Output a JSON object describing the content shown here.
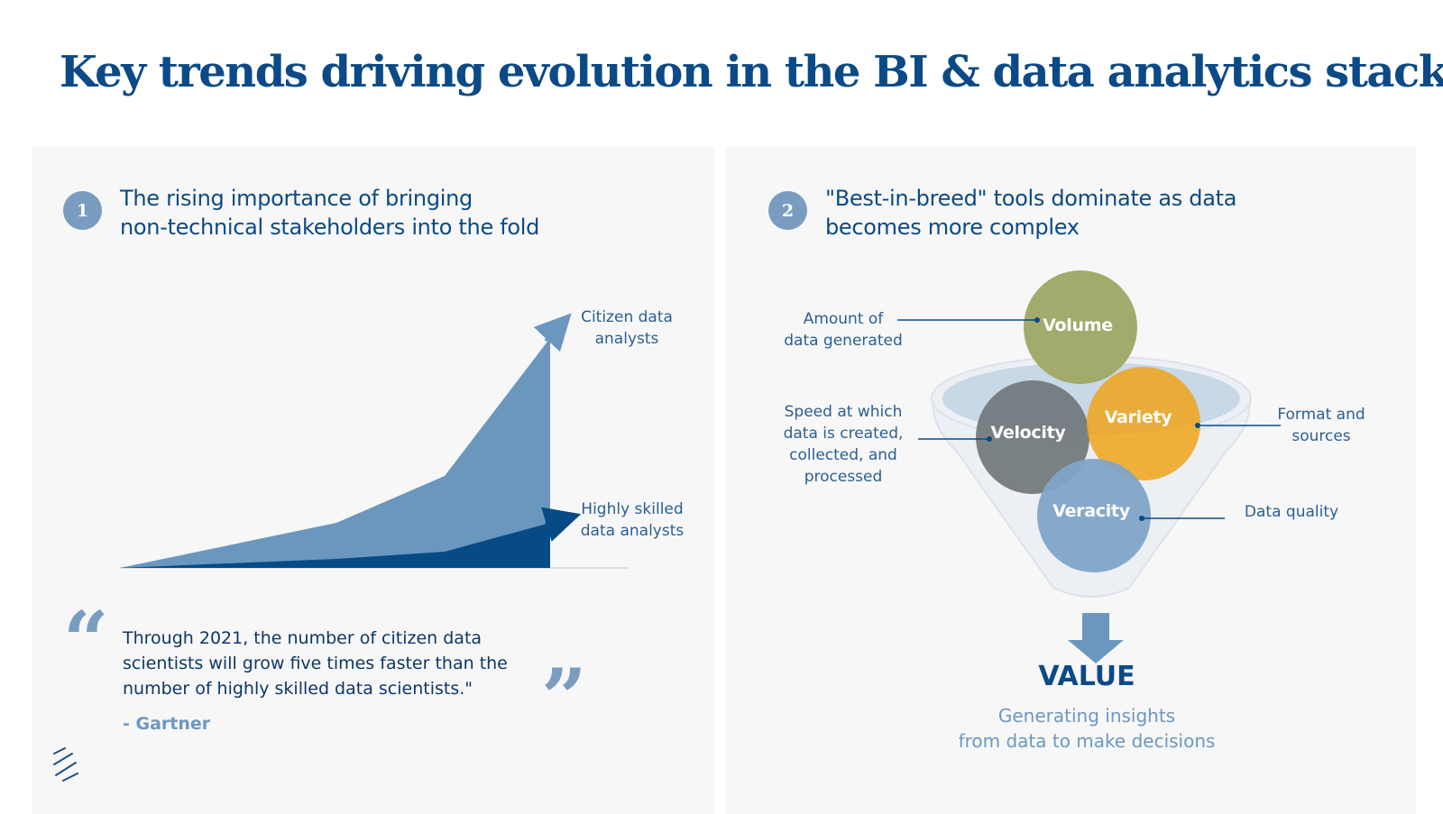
{
  "title": "Key trends driving evolution in the BI & data analytics stack",
  "trend1": {
    "number": "1",
    "heading_lines": [
      "The rising importance of bringing",
      "non-technical stakeholders into the fold"
    ],
    "chart_data": {
      "type": "area",
      "title": "",
      "xlabel": "",
      "ylabel": "",
      "series": [
        {
          "name": "Citizen data analysts",
          "color": "#6b97bf"
        },
        {
          "name": "Highly skilled data analysts",
          "color": "#064b86"
        }
      ],
      "series_labels": {
        "citizen": [
          "Citizen data",
          "analysts"
        ],
        "skilled": [
          "Highly skilled",
          "data analysts"
        ]
      }
    },
    "quote_lines": [
      "Through 2021, the number of citizen data",
      "scientists will grow five times faster than the",
      "number of highly skilled data scientists.\""
    ],
    "quote_author": "- Gartner"
  },
  "trend2": {
    "number": "2",
    "heading_lines": [
      "\"Best-in-breed\" tools dominate as data",
      "becomes more complex"
    ],
    "circles": {
      "volume": "Volume",
      "velocity": "Velocity",
      "variety": "Variety",
      "veracity": "Veracity"
    },
    "descriptions": {
      "volume": [
        "Amount of",
        "data generated"
      ],
      "velocity": [
        "Speed at which",
        "data is created,",
        "collected, and",
        "processed"
      ],
      "variety": [
        "Format and",
        "sources"
      ],
      "veracity": [
        "Data quality"
      ]
    },
    "value_title": "VALUE",
    "value_sub_lines": [
      "Generating insights",
      "from data to make decisions"
    ]
  },
  "colors": {
    "navy": "#0b4a86",
    "volume": "#a2ab6c",
    "velocity": "#6e7479",
    "variety": "#f0a41a",
    "veracity": "#7fa4c8",
    "funnel": "#c7d8e6"
  },
  "icons": [
    "quote-open-icon",
    "quote-close-icon",
    "down-arrow-icon",
    "brand-logo-icon"
  ]
}
